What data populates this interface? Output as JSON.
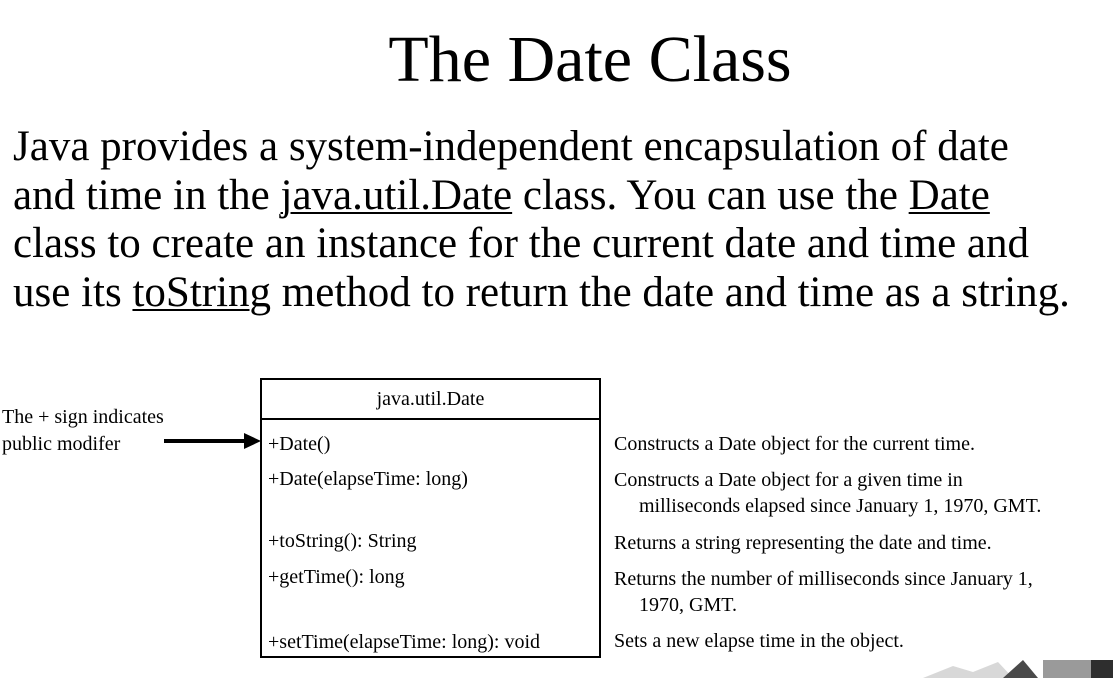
{
  "title": "The Date Class",
  "paragraph": {
    "l1": "Java provides a system-independent encapsulation of date",
    "l2_a": "and time in the ",
    "l2_u1": "java.util.Date",
    "l2_b": " class. You can use the ",
    "l2_u2": "Date",
    "l3": "class to create an instance for the current date and time and",
    "l4_a": "use its ",
    "l4_u": "toString",
    "l4_b": " method to return the date and time as a string."
  },
  "note": {
    "line1": "The + sign indicates",
    "line2": "public modifer"
  },
  "uml": {
    "class_name": "java.util.Date",
    "members": [
      "+Date()",
      "+Date(elapseTime: long)",
      "+toString(): String",
      "+getTime(): long",
      "+setTime(elapseTime: long): void"
    ]
  },
  "descriptions": [
    {
      "text": "Constructs a Date object for the current time.",
      "cont": ""
    },
    {
      "text": "Constructs a Date object for a given time in",
      "cont": "milliseconds elapsed since January 1, 1970, GMT."
    },
    {
      "text": "Returns a string representing the date and time.",
      "cont": ""
    },
    {
      "text": "Returns the number of milliseconds since January 1,",
      "cont": "1970, GMT."
    },
    {
      "text": "Sets a new elapse time in the object.",
      "cont": ""
    }
  ]
}
